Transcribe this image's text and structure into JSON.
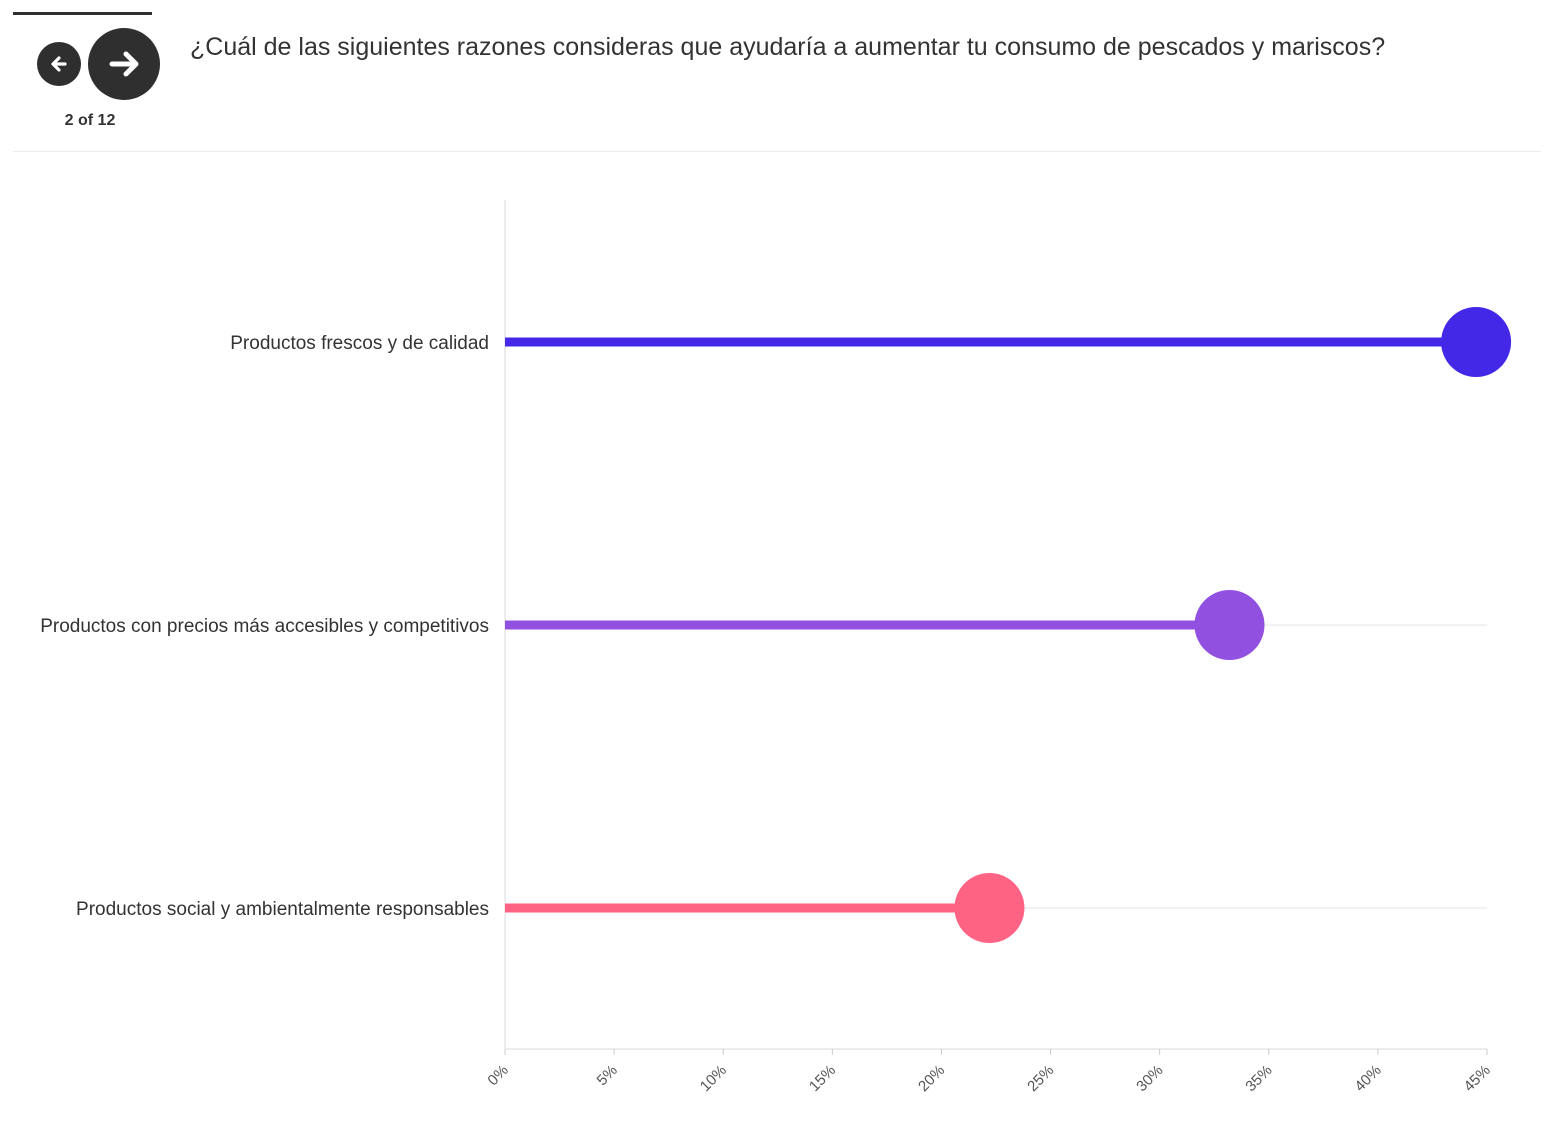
{
  "nav": {
    "prev_icon": "arrow-left-icon",
    "next_icon": "arrow-right-icon",
    "counter": "2 of 12"
  },
  "question": "¿Cuál de las siguientes razones consideras que ayudaría a aumentar tu consumo de pescados y mariscos?",
  "chart_data": {
    "type": "lollipop",
    "orientation": "horizontal",
    "categories": [
      "Productos frescos y de calidad",
      "Productos con precios más accesibles y competitivos",
      "Productos social y ambientalmente responsables"
    ],
    "values": [
      44.5,
      33.2,
      22.2
    ],
    "colors": [
      "#4328e7",
      "#9150e0",
      "#ff6384"
    ],
    "xlim": [
      0,
      45
    ],
    "xticks": [
      "0%",
      "5%",
      "10%",
      "15%",
      "20%",
      "25%",
      "30%",
      "35%",
      "40%",
      "45%"
    ],
    "grid": true
  }
}
